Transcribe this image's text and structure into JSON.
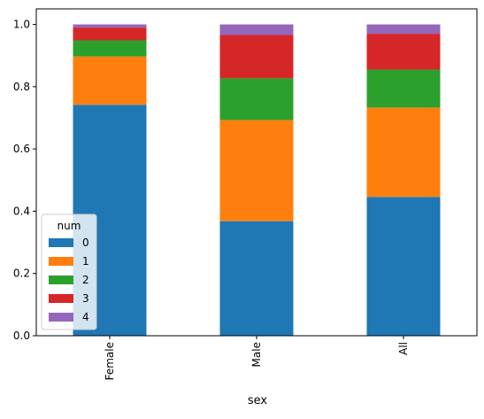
{
  "chart_data": {
    "type": "bar",
    "stacked": true,
    "categories": [
      "Female",
      "Male",
      "All"
    ],
    "xlabel": "sex",
    "ylabel": "",
    "ylim": [
      0,
      1.05
    ],
    "yticks": [
      "0.0",
      "0.2",
      "0.4",
      "0.6",
      "0.8",
      "1.0"
    ],
    "grid": false,
    "legend": {
      "title": "num",
      "placement": "lower-left"
    },
    "series": [
      {
        "name": "0",
        "color": "#1f77b4",
        "values": [
          0.742,
          0.368,
          0.446
        ]
      },
      {
        "name": "1",
        "color": "#ff7f0e",
        "values": [
          0.155,
          0.325,
          0.287
        ]
      },
      {
        "name": "2",
        "color": "#2ca02c",
        "values": [
          0.052,
          0.134,
          0.122
        ]
      },
      {
        "name": "3",
        "color": "#d62728",
        "values": [
          0.041,
          0.139,
          0.115
        ]
      },
      {
        "name": "4",
        "color": "#9467bd",
        "values": [
          0.01,
          0.034,
          0.03
        ]
      }
    ]
  }
}
